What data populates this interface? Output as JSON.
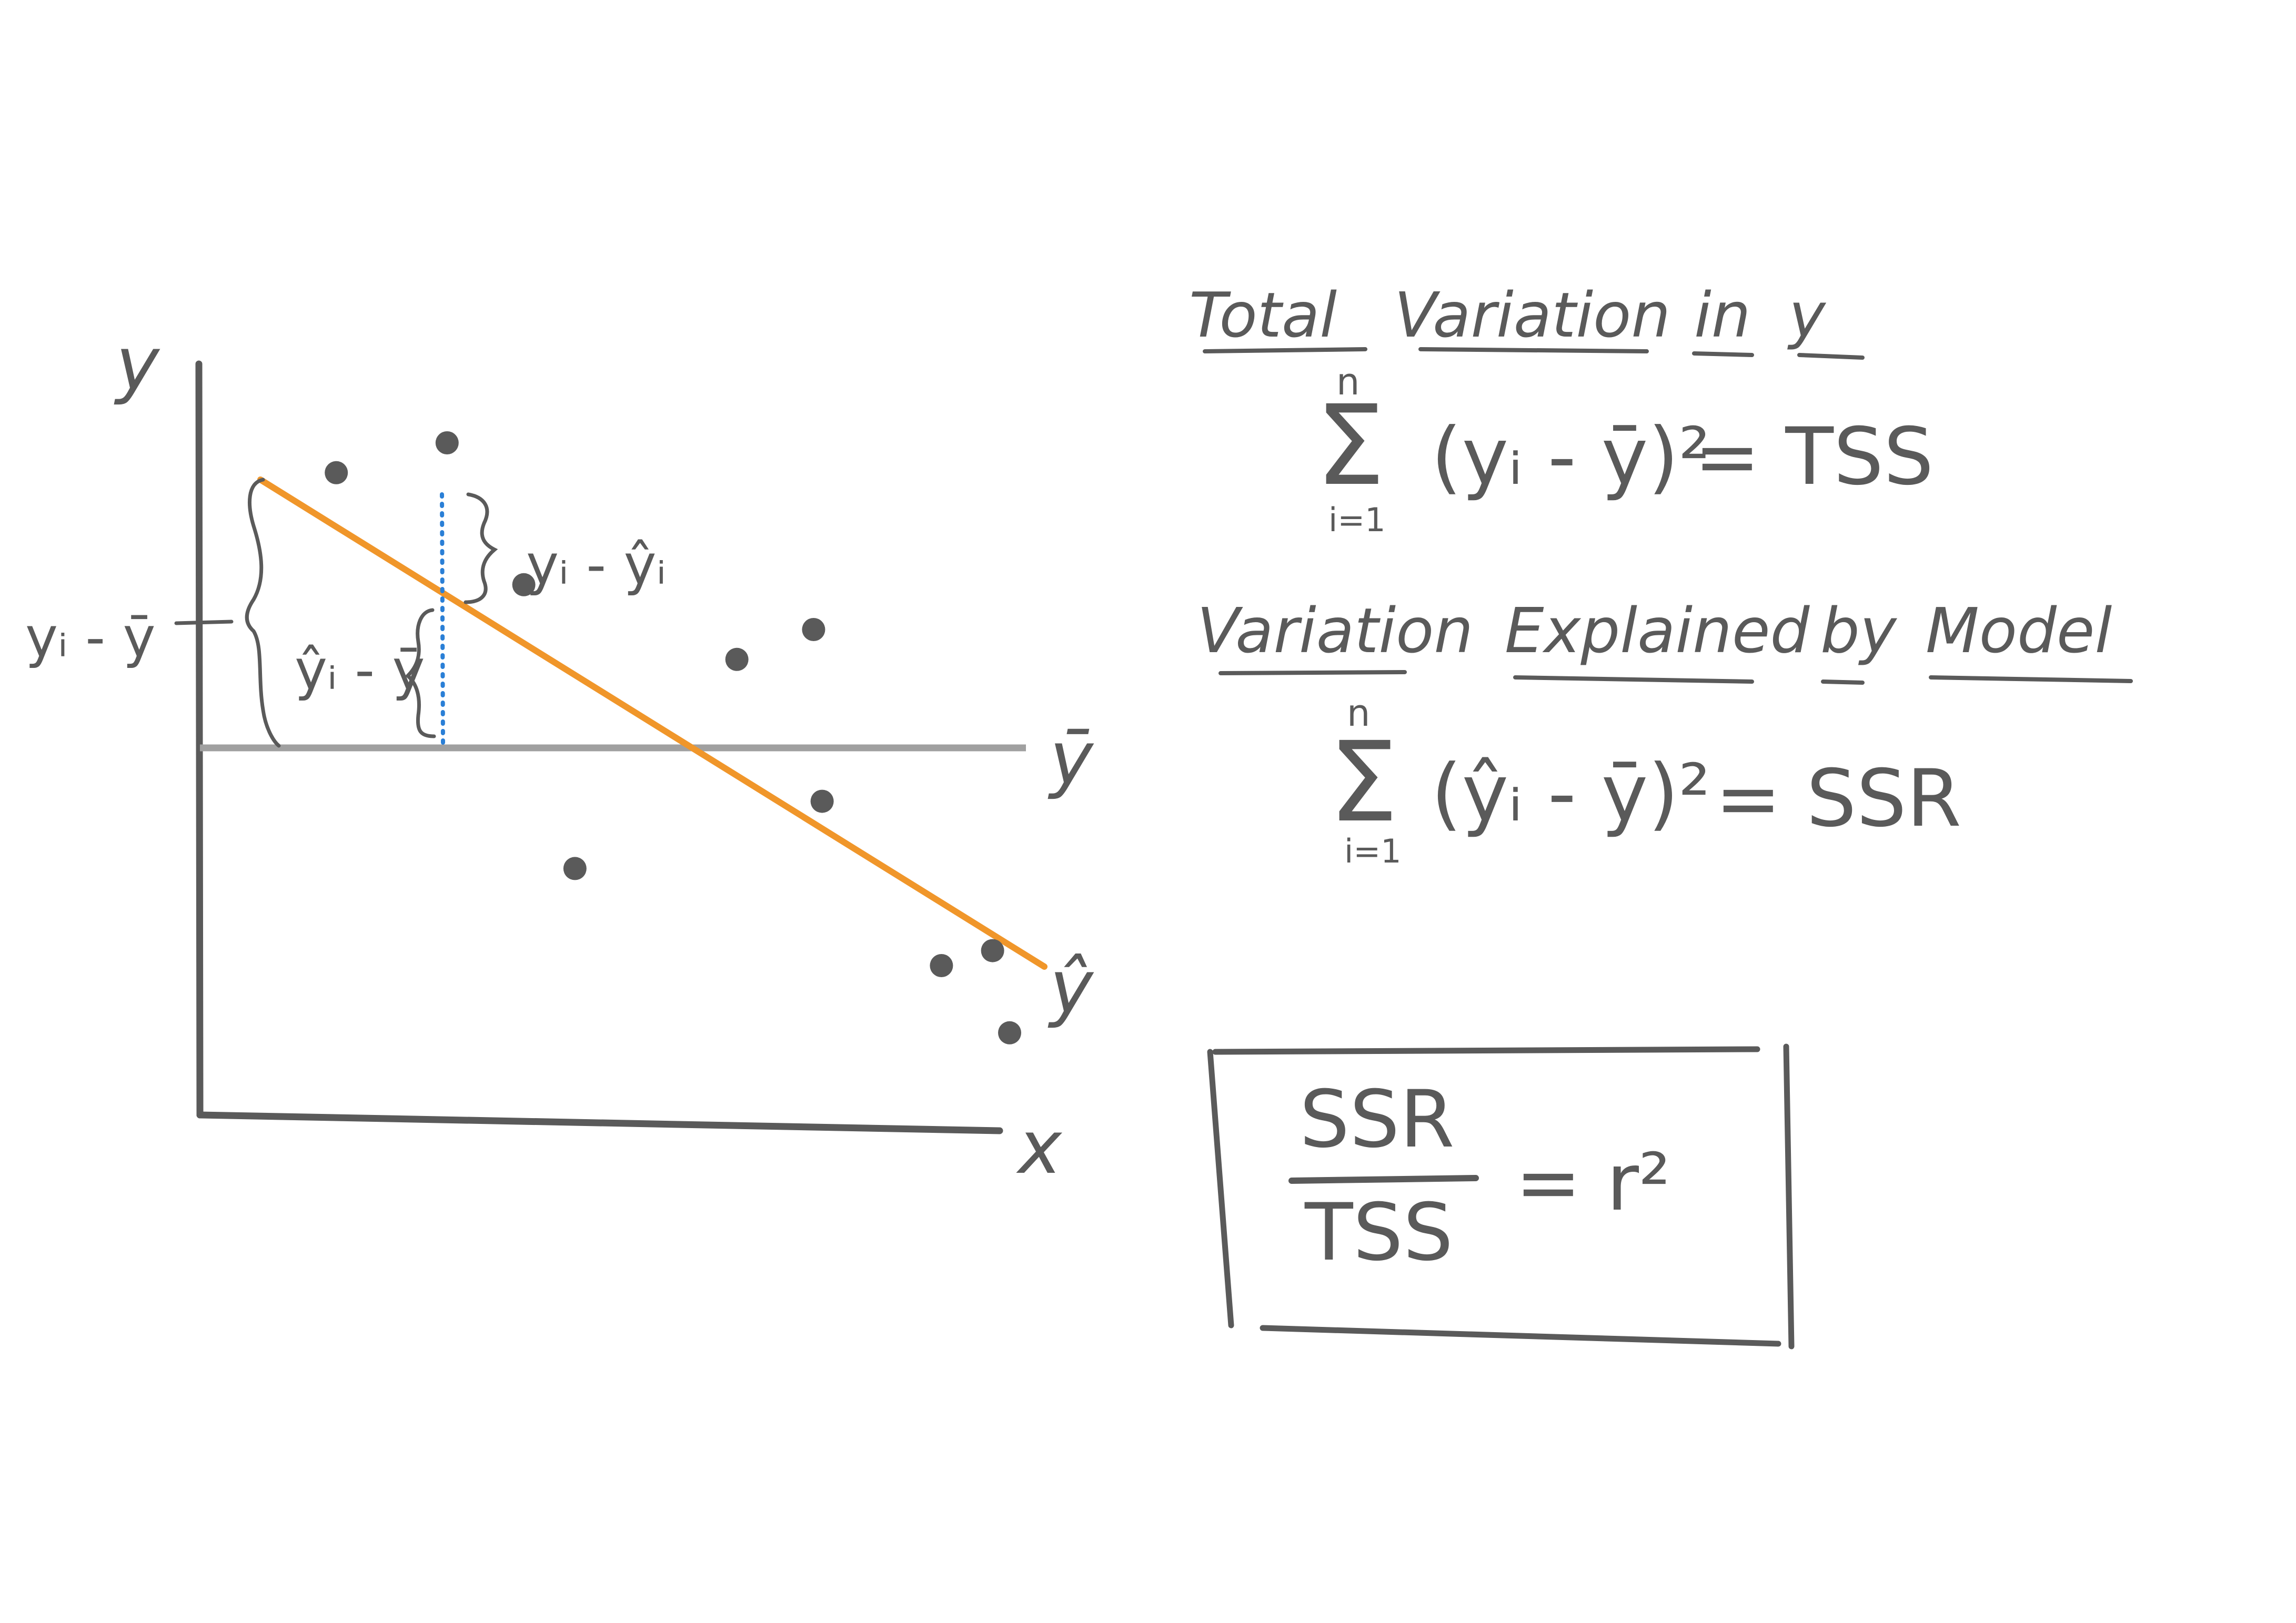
{
  "colors": {
    "ink": "#5a5a5a",
    "regression_line": "#f0962a",
    "mean_line": "#a0a0a0",
    "residual_dots": "#2a7fd6",
    "background": "#ffffff"
  },
  "diagram": {
    "axes": {
      "y_label": "y",
      "x_label": "x"
    },
    "line_labels": {
      "mean_line": "ȳ",
      "regression_line": "ŷ"
    },
    "bracket_labels": {
      "total_deviation": "yᵢ - ȳ",
      "explained_deviation": "ŷᵢ - ȳ",
      "residual": "yᵢ - ŷᵢ"
    },
    "data_points": [
      {
        "x": 1.6,
        "y": 8.6
      },
      {
        "x": 2.9,
        "y": 9.0
      },
      {
        "x": 3.8,
        "y": 7.1
      },
      {
        "x": 4.4,
        "y": 3.3
      },
      {
        "x": 6.3,
        "y": 6.1
      },
      {
        "x": 7.3,
        "y": 4.2
      },
      {
        "x": 7.2,
        "y": 6.5
      },
      {
        "x": 8.7,
        "y": 2.0
      },
      {
        "x": 9.3,
        "y": 2.2
      },
      {
        "x": 9.5,
        "y": 1.1
      }
    ]
  },
  "formulas": {
    "tss": {
      "heading_words": [
        "Total",
        "Variation",
        "in",
        "y"
      ],
      "sum_top": "n",
      "sum_symbol": "Σ",
      "sum_bottom": "i=1",
      "expression": "(yᵢ - ȳ)²",
      "equals": "= TSS"
    },
    "ssr": {
      "heading_words": [
        "Variation",
        "Explained",
        "by",
        "Model"
      ],
      "sum_top": "n",
      "sum_symbol": "Σ",
      "sum_bottom": "i=1",
      "expression": "(ŷᵢ - ȳ)²",
      "equals": "= SSR"
    },
    "r_squared": {
      "numerator": "SSR",
      "denominator": "TSS",
      "result": "= r²"
    }
  }
}
